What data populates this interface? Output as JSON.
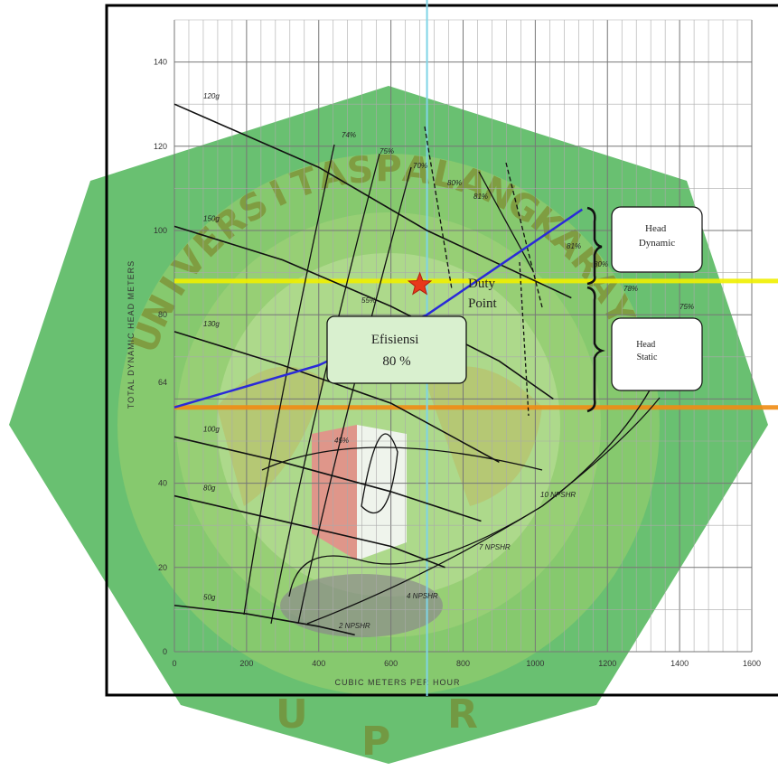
{
  "chart_data": {
    "type": "line",
    "xlabel": "CUBIC METERS PER HOUR",
    "ylabel": "TOTAL DYNAMIC HEAD METERS",
    "xlim": [
      0,
      1600
    ],
    "ylim": [
      0,
      150
    ],
    "x_ticks": [
      "0",
      "200",
      "400",
      "600",
      "800",
      "1000",
      "1200",
      "1400",
      "1600"
    ],
    "y_ticks": [
      "0",
      "20",
      "40",
      "64",
      "80",
      "100",
      "120",
      "140"
    ],
    "grid": true,
    "impeller_curves": [
      {
        "label": "120g",
        "points": [
          [
            0,
            130
          ],
          [
            400,
            115
          ],
          [
            700,
            100
          ],
          [
            1100,
            84
          ]
        ]
      },
      {
        "label": "150g",
        "points": [
          [
            0,
            101
          ],
          [
            300,
            93
          ],
          [
            600,
            82
          ],
          [
            900,
            69
          ],
          [
            1050,
            60
          ]
        ]
      },
      {
        "label": "130g",
        "points": [
          [
            0,
            76
          ],
          [
            300,
            68
          ],
          [
            600,
            59
          ],
          [
            900,
            45
          ]
        ]
      },
      {
        "label": "100g",
        "points": [
          [
            0,
            51
          ],
          [
            300,
            45
          ],
          [
            600,
            38
          ],
          [
            850,
            31
          ]
        ]
      },
      {
        "label": "80g",
        "points": [
          [
            0,
            37
          ],
          [
            300,
            31
          ],
          [
            600,
            25
          ],
          [
            750,
            20
          ]
        ]
      },
      {
        "label": "50g",
        "points": [
          [
            0,
            11
          ],
          [
            200,
            9
          ],
          [
            400,
            6
          ],
          [
            500,
            4
          ]
        ]
      }
    ],
    "efficiency_labels": [
      "74%",
      "75%",
      "70%",
      "80%",
      "81%",
      "81%",
      "80%",
      "78%",
      "75%",
      "55%",
      "45%"
    ],
    "npshr_labels": [
      "10 NPSHR",
      "7 NPSHR",
      "4 NPSHR",
      "2 NPSHR"
    ],
    "system_curve": {
      "points": [
        [
          0,
          58
        ],
        [
          400,
          68
        ],
        [
          700,
          80
        ],
        [
          1130,
          105
        ]
      ]
    },
    "static_head": 58,
    "duty_point": {
      "x": 700,
      "y": 88
    },
    "efficiency_at_duty": "80 %",
    "reference_lines": [
      {
        "orientation": "horizontal",
        "y": 88,
        "color": "#f0f000"
      },
      {
        "orientation": "horizontal",
        "y": 58,
        "color": "#f08c14"
      },
      {
        "orientation": "vertical",
        "x": 700,
        "color": "#7fd4e6"
      }
    ]
  },
  "callouts": {
    "duty_point": "Duty\nPoint",
    "efficiency": "Efisiensi\n80 %",
    "head_dynamic": "Head\nDynamic",
    "head_static": "Head\nStatic",
    "extra_pct_1": "75%",
    "extra_pct_2": "55%"
  },
  "watermark": {
    "text": "UNIVERSITAS PALANGKA RAYA",
    "bottom_letters": [
      "U",
      "P",
      "R"
    ],
    "ring_color": "#4caf50"
  },
  "colors": {
    "system_curve": "#2a2ad8",
    "duty_marker": "#e8381a",
    "grid": "#9a9a9a",
    "curves": "#111111"
  }
}
